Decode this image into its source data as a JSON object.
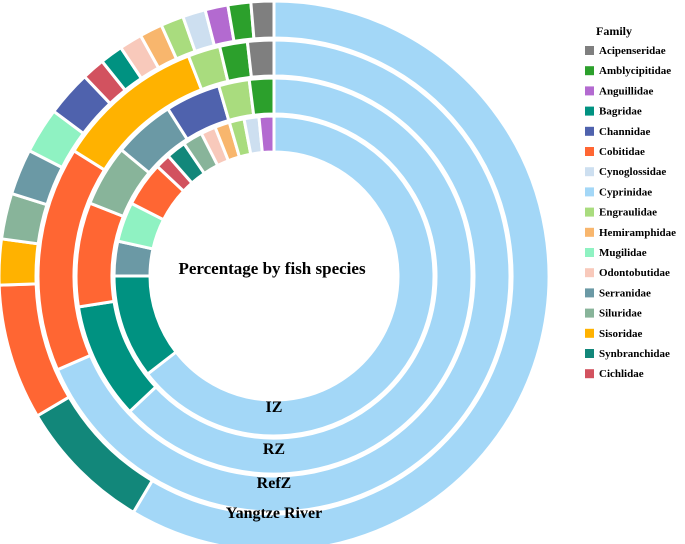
{
  "chart_data": {
    "type": "donut",
    "title": "Percentage by fish species",
    "legend_title": "Family",
    "legend_position": "right",
    "families": [
      {
        "name": "Acipenseridae",
        "color": "#7f7f7f"
      },
      {
        "name": "Amblycipitidae",
        "color": "#2ca02c"
      },
      {
        "name": "Anguillidae",
        "color": "#b36ad0"
      },
      {
        "name": "Bagridae",
        "color": "#009281"
      },
      {
        "name": "Channidae",
        "color": "#4f62ad"
      },
      {
        "name": "Cobitidae",
        "color": "#ff6633"
      },
      {
        "name": "Cynoglossidae",
        "color": "#cddff0"
      },
      {
        "name": "Cyprinidae",
        "color": "#a3d7f7"
      },
      {
        "name": "Engraulidae",
        "color": "#a9dc7e"
      },
      {
        "name": "Hemiramphidae",
        "color": "#f8b66d"
      },
      {
        "name": "Mugilidae",
        "color": "#8ff2c2"
      },
      {
        "name": "Odontobutidae",
        "color": "#f8c9bb"
      },
      {
        "name": "Serranidae",
        "color": "#6b99a5"
      },
      {
        "name": "Siluridae",
        "color": "#88b49a"
      },
      {
        "name": "Sisoridae",
        "color": "#ffb200"
      },
      {
        "name": "Synbranchidae",
        "color": "#12877a"
      },
      {
        "name": "Cichlidae",
        "color": "#d2525f"
      }
    ],
    "rings": [
      {
        "label": "Yangtze River",
        "segments": [
          {
            "family": "Cyprinidae",
            "value": 61.0
          },
          {
            "family": "Synbranchidae",
            "value": 8.3
          },
          {
            "family": "Cobitidae",
            "value": 8.3
          },
          {
            "family": "Sisoridae",
            "value": 2.8
          },
          {
            "family": "Siluridae",
            "value": 2.8
          },
          {
            "family": "Serranidae",
            "value": 2.8
          },
          {
            "family": "Mugilidae",
            "value": 2.8
          },
          {
            "family": "Channidae",
            "value": 2.8
          },
          {
            "family": "Cichlidae",
            "value": 1.4
          },
          {
            "family": "Bagridae",
            "value": 1.4
          },
          {
            "family": "Odontobutidae",
            "value": 1.4
          },
          {
            "family": "Hemiramphidae",
            "value": 1.4
          },
          {
            "family": "Engraulidae",
            "value": 1.4
          },
          {
            "family": "Cynoglossidae",
            "value": 1.4
          },
          {
            "family": "Anguillidae",
            "value": 1.4
          },
          {
            "family": "Amblycipitidae",
            "value": 1.4
          },
          {
            "family": "Acipenseridae",
            "value": 1.4
          }
        ]
      },
      {
        "label": "RefZ",
        "segments": [
          {
            "family": "Cyprinidae",
            "value": 68.5
          },
          {
            "family": "Cobitidae",
            "value": 15.4
          },
          {
            "family": "Sisoridae",
            "value": 10.2
          },
          {
            "family": "Engraulidae",
            "value": 2.2
          },
          {
            "family": "Amblycipitidae",
            "value": 1.9
          },
          {
            "family": "Acipenseridae",
            "value": 1.8
          }
        ]
      },
      {
        "label": "RZ",
        "segments": [
          {
            "family": "Cyprinidae",
            "value": 63.0
          },
          {
            "family": "Bagridae",
            "value": 9.5
          },
          {
            "family": "Cobitidae",
            "value": 8.5
          },
          {
            "family": "Siluridae",
            "value": 5.0
          },
          {
            "family": "Serranidae",
            "value": 5.0
          },
          {
            "family": "Channidae",
            "value": 4.5
          },
          {
            "family": "Engraulidae",
            "value": 2.5
          },
          {
            "family": "Amblycipitidae",
            "value": 2.0
          }
        ]
      },
      {
        "label": "IZ",
        "segments": [
          {
            "family": "Cyprinidae",
            "value": 64.5
          },
          {
            "family": "Bagridae",
            "value": 10.5
          },
          {
            "family": "Serranidae",
            "value": 3.5
          },
          {
            "family": "Mugilidae",
            "value": 4.0
          },
          {
            "family": "Cobitidae",
            "value": 4.5
          },
          {
            "family": "Cichlidae",
            "value": 1.5
          },
          {
            "family": "Synbranchidae",
            "value": 2.0
          },
          {
            "family": "Siluridae",
            "value": 2.0
          },
          {
            "family": "Odontobutidae",
            "value": 1.5
          },
          {
            "family": "Hemiramphidae",
            "value": 1.5
          },
          {
            "family": "Engraulidae",
            "value": 1.5
          },
          {
            "family": "Cynoglossidae",
            "value": 1.5
          },
          {
            "family": "Anguillidae",
            "value": 1.5
          }
        ]
      }
    ]
  }
}
